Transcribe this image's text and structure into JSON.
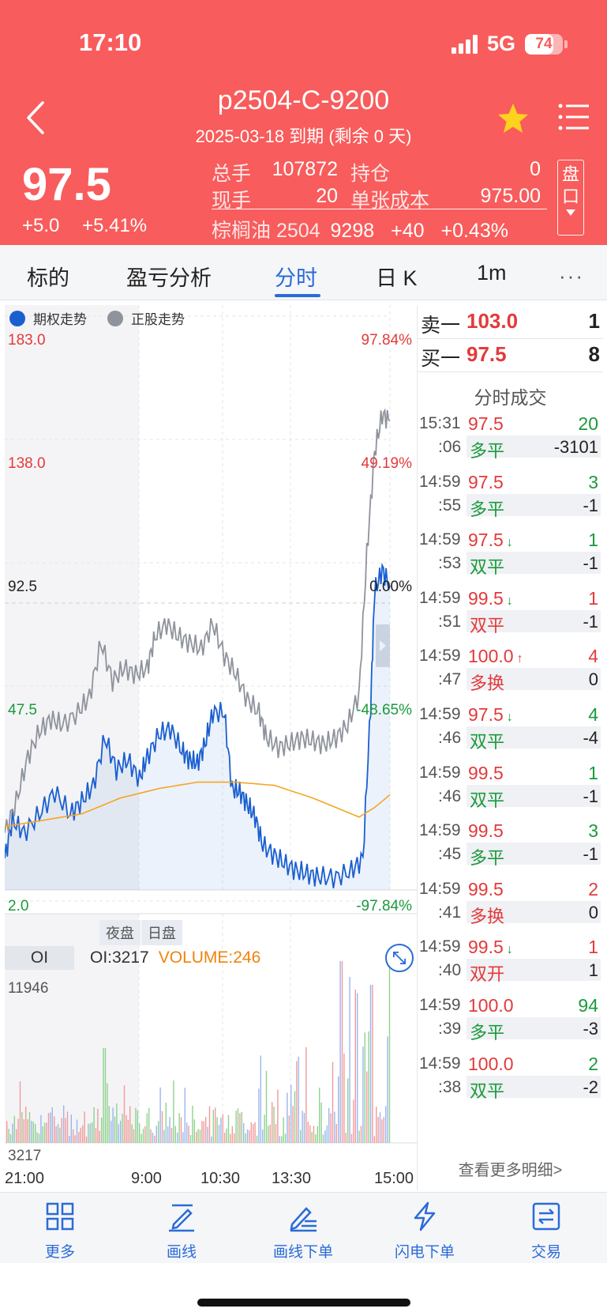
{
  "status": {
    "time": "17:10",
    "network": "5G",
    "battery": "74",
    "battery_level": 0.74
  },
  "header": {
    "title": "p2504-C-9200",
    "subtitle": "2025-03-18 到期 (剩余 0 天)",
    "price": "97.5",
    "change": "+5.0",
    "change_pct": "+5.41%",
    "stats": {
      "total_lots_label": "总手",
      "total_lots": "107872",
      "position_label": "持仓",
      "position": "0",
      "current_lots_label": "现手",
      "current_lots": "20",
      "unit_cost_label": "单张成本",
      "unit_cost": "975.00"
    },
    "underlying": {
      "name": "棕榈油 2504",
      "price": "9298",
      "change": "+40",
      "change_pct": "+0.43%"
    },
    "pankou_label": "盘口"
  },
  "tabs": [
    {
      "label": "标的"
    },
    {
      "label": "盈亏分析"
    },
    {
      "label": "分时"
    },
    {
      "label": "日 K"
    },
    {
      "label": "1m"
    }
  ],
  "tab_more": "···",
  "chart": {
    "legend": [
      {
        "label": "期权走势",
        "color": "#1a5fd0"
      },
      {
        "label": "正股走势",
        "color": "#8e939c"
      }
    ],
    "y_left": [
      "183.0",
      "138.0",
      "92.5",
      "47.5",
      "2.0"
    ],
    "y_right": [
      "97.84%",
      "49.19%",
      "0.00%",
      "-48.65%",
      "-97.84%"
    ],
    "sessions": [
      "夜盘",
      "日盘"
    ],
    "oi_tab": "OI",
    "oi_label": "OI:3217",
    "volume_label": "VOLUME:246",
    "vol_max": "11946",
    "vol_min": "3217",
    "x_labels": [
      "21:00",
      "9:00",
      "10:30",
      "13:30",
      "15:00"
    ]
  },
  "chart_data": {
    "type": "line",
    "x": [
      "21:00",
      "9:00",
      "10:30",
      "13:30",
      "15:00"
    ],
    "ylim": [
      2.0,
      183.0
    ],
    "series": [
      {
        "name": "期权走势",
        "color": "#1a5fd0",
        "points": [
          [
            0,
            12
          ],
          [
            0.02,
            24
          ],
          [
            0.05,
            20
          ],
          [
            0.09,
            26
          ],
          [
            0.13,
            33
          ],
          [
            0.17,
            26
          ],
          [
            0.2,
            30
          ],
          [
            0.23,
            35
          ],
          [
            0.26,
            50
          ],
          [
            0.29,
            40
          ],
          [
            0.32,
            43
          ],
          [
            0.35,
            37
          ],
          [
            0.37,
            44
          ],
          [
            0.4,
            51
          ],
          [
            0.43,
            53
          ],
          [
            0.46,
            46
          ],
          [
            0.48,
            43
          ],
          [
            0.5,
            42
          ],
          [
            0.52,
            48
          ],
          [
            0.54,
            58
          ],
          [
            0.57,
            58
          ],
          [
            0.59,
            34
          ],
          [
            0.61,
            33
          ],
          [
            0.63,
            29
          ],
          [
            0.65,
            25
          ],
          [
            0.67,
            16
          ],
          [
            0.7,
            13
          ],
          [
            0.73,
            10
          ],
          [
            0.76,
            8
          ],
          [
            0.79,
            7
          ],
          [
            0.82,
            6
          ],
          [
            0.86,
            6
          ],
          [
            0.9,
            8
          ],
          [
            0.93,
            12
          ],
          [
            0.95,
            60
          ],
          [
            0.96,
            96
          ],
          [
            0.98,
            103
          ],
          [
            1,
            98
          ]
        ]
      },
      {
        "name": "正股走势",
        "color": "#8e939c",
        "points": [
          [
            0,
            20
          ],
          [
            0.03,
            30
          ],
          [
            0.06,
            44
          ],
          [
            0.09,
            52
          ],
          [
            0.12,
            56
          ],
          [
            0.15,
            54
          ],
          [
            0.19,
            58
          ],
          [
            0.22,
            63
          ],
          [
            0.25,
            80
          ],
          [
            0.28,
            68
          ],
          [
            0.31,
            72
          ],
          [
            0.34,
            70
          ],
          [
            0.37,
            72
          ],
          [
            0.39,
            82
          ],
          [
            0.42,
            86
          ],
          [
            0.45,
            82
          ],
          [
            0.48,
            80
          ],
          [
            0.51,
            78
          ],
          [
            0.54,
            86
          ],
          [
            0.57,
            76
          ],
          [
            0.6,
            70
          ],
          [
            0.63,
            62
          ],
          [
            0.66,
            58
          ],
          [
            0.68,
            50
          ],
          [
            0.71,
            47
          ],
          [
            0.74,
            48
          ],
          [
            0.77,
            50
          ],
          [
            0.8,
            49
          ],
          [
            0.83,
            48
          ],
          [
            0.86,
            50
          ],
          [
            0.89,
            54
          ],
          [
            0.92,
            64
          ],
          [
            0.94,
            108
          ],
          [
            0.96,
            140
          ],
          [
            0.98,
            152
          ],
          [
            1,
            150
          ]
        ]
      },
      {
        "name": "avg",
        "color": "#f5a623",
        "points": [
          [
            0,
            22
          ],
          [
            0.1,
            24
          ],
          [
            0.2,
            26
          ],
          [
            0.3,
            31
          ],
          [
            0.4,
            34
          ],
          [
            0.5,
            36
          ],
          [
            0.6,
            36
          ],
          [
            0.7,
            35
          ],
          [
            0.8,
            31
          ],
          [
            0.88,
            27
          ],
          [
            0.92,
            25
          ],
          [
            0.96,
            28
          ],
          [
            1,
            32
          ]
        ]
      }
    ]
  },
  "orderbook": {
    "ask_label": "卖一",
    "ask_price": "103.0",
    "ask_qty": "1",
    "bid_label": "买一",
    "bid_price": "97.5",
    "bid_qty": "8"
  },
  "trades_title": "分时成交",
  "trades": [
    {
      "time": "15:31",
      "sec": ":06",
      "price": "97.5",
      "arrow": "",
      "vol": "20",
      "type": "多平",
      "oi": "-3101",
      "pc": "#e33a3a",
      "vc": "#1a9a3c",
      "tc": "#1a9a3c"
    },
    {
      "time": "14:59",
      "sec": ":55",
      "price": "97.5",
      "arrow": "",
      "vol": "3",
      "type": "多平",
      "oi": "-1",
      "pc": "#e33a3a",
      "vc": "#1a9a3c",
      "tc": "#1a9a3c"
    },
    {
      "time": "14:59",
      "sec": ":53",
      "price": "97.5",
      "arrow": "↓",
      "vol": "1",
      "type": "双平",
      "oi": "-1",
      "pc": "#e33a3a",
      "vc": "#1a9a3c",
      "tc": "#1a9a3c"
    },
    {
      "time": "14:59",
      "sec": ":51",
      "price": "99.5",
      "arrow": "↓",
      "vol": "1",
      "type": "双平",
      "oi": "-1",
      "pc": "#e33a3a",
      "vc": "#e33a3a",
      "tc": "#e33a3a"
    },
    {
      "time": "14:59",
      "sec": ":47",
      "price": "100.0",
      "arrow": "↑",
      "vol": "4",
      "type": "多换",
      "oi": "0",
      "pc": "#e33a3a",
      "vc": "#e33a3a",
      "tc": "#e33a3a"
    },
    {
      "time": "14:59",
      "sec": ":46",
      "price": "97.5",
      "arrow": "↓",
      "vol": "4",
      "type": "双平",
      "oi": "-4",
      "pc": "#e33a3a",
      "vc": "#1a9a3c",
      "tc": "#1a9a3c"
    },
    {
      "time": "14:59",
      "sec": ":46",
      "price": "99.5",
      "arrow": "",
      "vol": "1",
      "type": "双平",
      "oi": "-1",
      "pc": "#e33a3a",
      "vc": "#1a9a3c",
      "tc": "#1a9a3c"
    },
    {
      "time": "14:59",
      "sec": ":45",
      "price": "99.5",
      "arrow": "",
      "vol": "3",
      "type": "多平",
      "oi": "-1",
      "pc": "#e33a3a",
      "vc": "#1a9a3c",
      "tc": "#1a9a3c"
    },
    {
      "time": "14:59",
      "sec": ":41",
      "price": "99.5",
      "arrow": "",
      "vol": "2",
      "type": "多换",
      "oi": "0",
      "pc": "#e33a3a",
      "vc": "#e33a3a",
      "tc": "#e33a3a"
    },
    {
      "time": "14:59",
      "sec": ":40",
      "price": "99.5",
      "arrow": "↓",
      "vol": "1",
      "type": "双开",
      "oi": "1",
      "pc": "#e33a3a",
      "vc": "#e33a3a",
      "tc": "#e33a3a"
    },
    {
      "time": "14:59",
      "sec": ":39",
      "price": "100.0",
      "arrow": "",
      "vol": "94",
      "type": "多平",
      "oi": "-3",
      "pc": "#e33a3a",
      "vc": "#1a9a3c",
      "tc": "#1a9a3c"
    },
    {
      "time": "14:59",
      "sec": ":38",
      "price": "100.0",
      "arrow": "",
      "vol": "2",
      "type": "双平",
      "oi": "-2",
      "pc": "#e33a3a",
      "vc": "#1a9a3c",
      "tc": "#1a9a3c"
    }
  ],
  "more_link": "查看更多明细>",
  "toolbar": [
    {
      "label": "更多",
      "icon": "grid-icon"
    },
    {
      "label": "画线",
      "icon": "draw-line-icon"
    },
    {
      "label": "画线下单",
      "icon": "draw-order-icon"
    },
    {
      "label": "闪电下单",
      "icon": "lightning-icon"
    },
    {
      "label": "交易",
      "icon": "trade-icon"
    }
  ],
  "colors": {
    "header_bg": "#f85c5c",
    "accent": "#2a6bd8",
    "up": "#e33a3a",
    "down": "#1a9a3c"
  }
}
